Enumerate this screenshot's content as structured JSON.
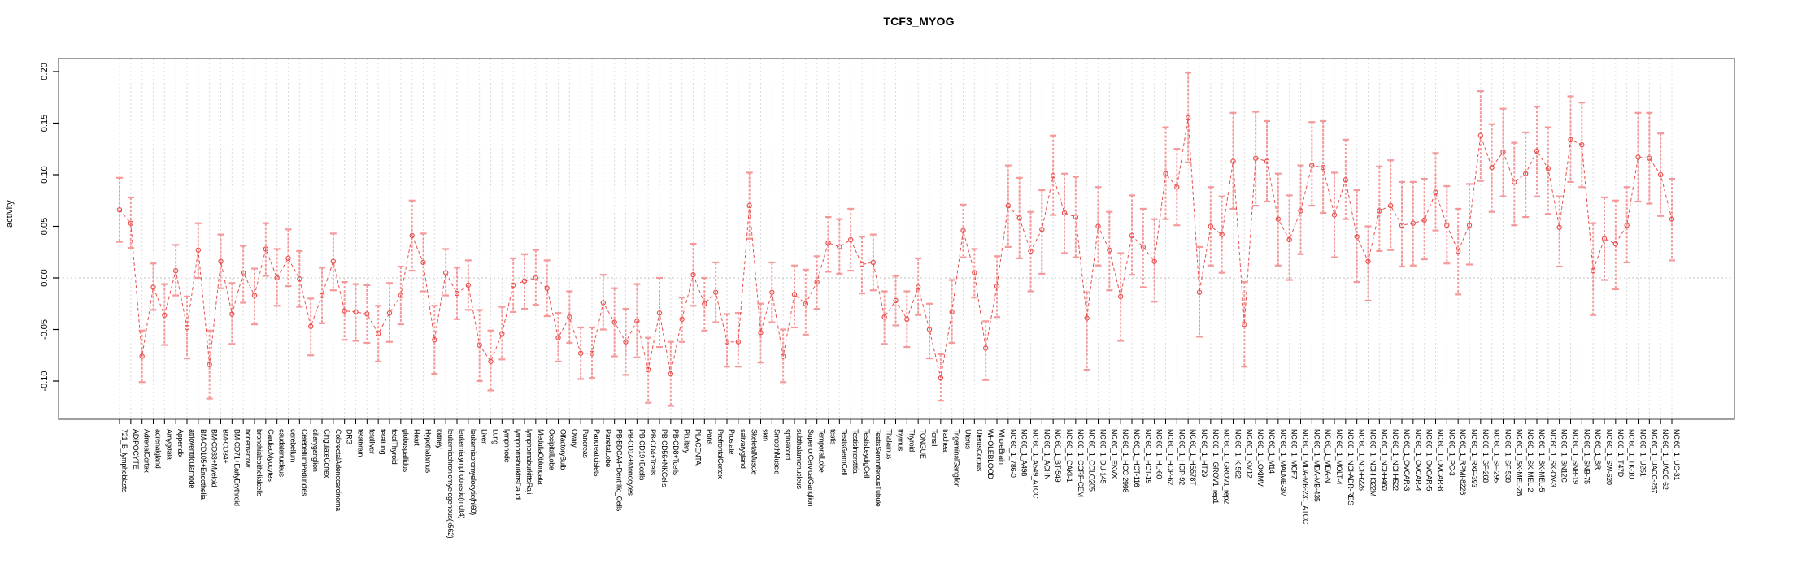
{
  "chart_data": {
    "type": "line",
    "title": "TCF3_MYOG",
    "xlabel": "",
    "ylabel": "activity",
    "ylim": [
      -0.137,
      0.213
    ],
    "yticks": [
      0.2,
      0.15,
      0.1,
      0.05,
      0.0,
      -0.05,
      -0.1
    ],
    "grid": "vertical-dashed-per-category",
    "zero_line": true,
    "legend": "none",
    "marker": "open-circle",
    "error_bars": true,
    "categories": [
      "721_B_lymphoblasts",
      "ADIPOCYTE",
      "AdrenalCortex",
      "adrenalgland",
      "Amygdala",
      "Appendix",
      "atrioventricularnode",
      "BM-CD105+Endothelial",
      "BM-CD33+Myeloid",
      "BM-CD34+",
      "BM-CD71+EarlyErythroid",
      "bonemarrow",
      "bronchialepithelialcells",
      "CardiacMyocytes",
      "caudatenucleus",
      "cerebellum",
      "CerebellumPeduncles",
      "ciliaryganglion",
      "CingulateCortex",
      "ColorectalAdenocarcinoma",
      "DRG",
      "fetalbrain",
      "fetalliver",
      "fetallung",
      "fetalThyroid",
      "globuspallidus",
      "Heart",
      "Hypothalamus",
      "kidney",
      "leukemiachronicmyelogenous(k562)",
      "leukemialymphoblastic(molt4)",
      "leukemiapromyelocytic(hl60)",
      "Liver",
      "Lung",
      "lymphnode",
      "lymphomaburkittsDaudi",
      "lymphomaburkittsRaji",
      "MedullaOblongata",
      "OccipitalLobe",
      "OlfactoryBulb",
      "Ovary",
      "Pancreas",
      "Pancreaticislets",
      "ParietalLobe",
      "PB-BDCA4+Dentritic_Cells",
      "PB-CD14+Monocytes",
      "PB-CD19+Bcells",
      "PB-CD4+Tcells",
      "PB-CD56+NKCells",
      "PB-CD8+Tcells",
      "Pituitary",
      "PLACENTA",
      "Pons",
      "PrefrontalCortex",
      "Prostate",
      "salivarygland",
      "SkeletalMuscle",
      "skin",
      "SmoothMuscle",
      "spinalcord",
      "subthalamicnucleus",
      "SuperiorCervicalGanglion",
      "TemporalLobe",
      "testis",
      "TestisGermCell",
      "TestisInterstitial",
      "TestisLeydigCell",
      "TestisSeminiferousTubule",
      "Thalamus",
      "thymus",
      "Thyroid",
      "TONGUE",
      "Tonsil",
      "trachea",
      "TrigeminalGanglion",
      "Uterus",
      "UterusCorpus",
      "WHOLEBLOOD",
      "WholeBrain",
      "NCI60_1_786-0",
      "NCI60_1_A498",
      "NCI60_1_A549_ATCC",
      "NCI60_1_ACHN",
      "NCI60_1_BT-549",
      "NCI60_1_CAKI-1",
      "NCI60_1_CCRF-CEM",
      "NCI60_1_COLO205",
      "NCI60_1_DU-145",
      "NCI60_1_EKVX",
      "NCI60_1_HCC-2998",
      "NCI60_1_HCT-116",
      "NCI60_1_HCT-15",
      "NCI60_1_HL-60",
      "NCI60_1_HOP-62",
      "NCI60_1_HOP-92",
      "NCI60_1_HS578T",
      "NCI60_1_HT29",
      "NCI60_1_IGROV1_rep1",
      "NCI60_1_IGROV1_rep2",
      "NCI60_1_K-562",
      "NCI60_1_KM12",
      "NCI60_1_LOXIMVI",
      "NCI60_1_M14",
      "NCI60_1_MALME-3M",
      "NCI60_1_MCF7",
      "NCI60_1_MDA-MB-231_ATCC",
      "NCI60_1_MDA-MB-435",
      "NCI60_1_MDA-N",
      "NCI60_1_MOLT-4",
      "NCI60_1_NCI-ADR-RES",
      "NCI60_1_NCI-H226",
      "NCI60_1_NCI-H322M",
      "NCI60_1_NCI-H460",
      "NCI60_1_NCI-H522",
      "NCI60_1_OVCAR-3",
      "NCI60_1_OVCAR-4",
      "NCI60_1_OVCAR-5",
      "NCI60_1_OVCAR-8",
      "NCI60_1_PC-3",
      "NCI60_1_RPMI-8226",
      "NCI60_1_RXF-393",
      "NCI60_1_SF-268",
      "NCI60_1_SF-295",
      "NCI60_1_SF-539",
      "NCI60_1_SK-MEL-28",
      "NCI60_1_SK-MEL-2",
      "NCI60_1_SK-MEL-5",
      "NCI60_1_SK-OV-3",
      "NCI60_1_SN12C",
      "NCI60_1_SNB-19",
      "NCI60_1_SNB-75",
      "NCI60_1_SR",
      "NCI60_1_SW-620",
      "NCI60_1_T47D",
      "NCI60_1_TK-10",
      "NCI60_1_U251",
      "NCI60_1_UACC-257",
      "NCI60_1_UACC-62",
      "NCI60_1_UO-31"
    ],
    "series": [
      {
        "name": "activity",
        "values": [
          0.066,
          0.053,
          -0.076,
          -0.009,
          -0.036,
          0.007,
          -0.048,
          0.027,
          -0.084,
          0.016,
          -0.035,
          0.005,
          -0.017,
          0.028,
          0.0,
          0.019,
          -0.001,
          -0.047,
          -0.017,
          0.016,
          -0.032,
          -0.033,
          -0.035,
          -0.054,
          -0.034,
          -0.017,
          0.041,
          0.015,
          -0.06,
          0.005,
          -0.015,
          -0.007,
          -0.065,
          -0.081,
          -0.054,
          -0.007,
          -0.003,
          0.0,
          -0.01,
          -0.058,
          -0.038,
          -0.073,
          -0.073,
          -0.024,
          -0.043,
          -0.062,
          -0.042,
          -0.089,
          -0.034,
          -0.093,
          -0.04,
          0.003,
          -0.025,
          -0.014,
          -0.062,
          -0.062,
          0.07,
          -0.053,
          -0.014,
          -0.076,
          -0.016,
          -0.025,
          -0.004,
          0.034,
          0.03,
          0.037,
          0.013,
          0.015,
          -0.038,
          -0.022,
          -0.04,
          -0.009,
          -0.05,
          -0.097,
          -0.033,
          0.046,
          0.005,
          -0.068,
          -0.008,
          0.07,
          0.058,
          0.026,
          0.047,
          0.099,
          0.063,
          0.059,
          -0.039,
          0.05,
          0.027,
          -0.018,
          0.041,
          0.03,
          0.016,
          0.101,
          0.088,
          0.155,
          -0.014,
          0.05,
          0.042,
          0.113,
          -0.045,
          0.116,
          0.113,
          0.057,
          0.037,
          0.065,
          0.109,
          0.107,
          0.061,
          0.095,
          0.04,
          0.016,
          0.065,
          0.07,
          0.051,
          0.053,
          0.056,
          0.083,
          0.051,
          0.026,
          0.051,
          0.138,
          0.107,
          0.122,
          0.093,
          0.101,
          0.123,
          0.106,
          0.049,
          0.134,
          0.129,
          0.007,
          0.038,
          0.033,
          0.051,
          0.117,
          0.116,
          0.1,
          0.057
        ],
        "lower": [
          0.035,
          0.029,
          -0.101,
          -0.031,
          -0.065,
          -0.017,
          -0.078,
          0.0,
          -0.117,
          -0.01,
          -0.064,
          -0.024,
          -0.045,
          0.002,
          -0.027,
          -0.008,
          -0.028,
          -0.075,
          -0.044,
          -0.012,
          -0.06,
          -0.061,
          -0.063,
          -0.081,
          -0.062,
          -0.045,
          0.007,
          -0.013,
          -0.093,
          -0.017,
          -0.04,
          -0.031,
          -0.1,
          -0.109,
          -0.079,
          -0.033,
          -0.03,
          -0.026,
          -0.037,
          -0.081,
          -0.063,
          -0.098,
          -0.097,
          -0.05,
          -0.076,
          -0.094,
          -0.077,
          -0.121,
          -0.067,
          -0.124,
          -0.062,
          -0.027,
          -0.051,
          -0.043,
          -0.086,
          -0.086,
          0.038,
          -0.082,
          -0.043,
          -0.101,
          -0.048,
          -0.055,
          -0.03,
          0.006,
          0.004,
          0.007,
          -0.015,
          -0.012,
          -0.064,
          -0.046,
          -0.067,
          -0.036,
          -0.078,
          -0.119,
          -0.063,
          0.02,
          -0.019,
          -0.099,
          -0.038,
          0.03,
          0.019,
          -0.013,
          0.004,
          0.061,
          0.024,
          0.02,
          -0.089,
          0.012,
          -0.012,
          -0.061,
          0.003,
          -0.009,
          -0.023,
          0.057,
          0.051,
          0.112,
          -0.057,
          0.012,
          0.005,
          0.067,
          -0.086,
          0.07,
          0.074,
          0.012,
          -0.002,
          0.023,
          0.07,
          0.063,
          0.02,
          0.057,
          -0.004,
          -0.022,
          0.026,
          0.027,
          0.011,
          0.012,
          0.018,
          0.046,
          0.014,
          -0.016,
          0.013,
          0.094,
          0.064,
          0.079,
          0.051,
          0.059,
          0.079,
          0.062,
          0.011,
          0.093,
          0.088,
          -0.036,
          -0.002,
          -0.011,
          0.015,
          0.074,
          0.072,
          0.06,
          0.017
        ],
        "upper": [
          0.097,
          0.078,
          -0.051,
          0.014,
          -0.006,
          0.032,
          -0.018,
          0.053,
          -0.051,
          0.042,
          -0.005,
          0.031,
          0.009,
          0.053,
          0.028,
          0.047,
          0.026,
          -0.02,
          0.01,
          0.043,
          -0.004,
          -0.006,
          -0.007,
          -0.027,
          -0.005,
          0.011,
          0.075,
          0.043,
          -0.027,
          0.028,
          0.01,
          0.017,
          -0.031,
          -0.051,
          -0.028,
          0.019,
          0.023,
          0.027,
          0.017,
          -0.034,
          -0.013,
          -0.048,
          -0.048,
          0.003,
          -0.01,
          -0.03,
          -0.006,
          -0.058,
          0.0,
          -0.062,
          -0.019,
          0.033,
          0.0,
          0.015,
          -0.035,
          -0.034,
          0.102,
          -0.025,
          0.015,
          -0.05,
          0.012,
          0.008,
          0.021,
          0.059,
          0.057,
          0.067,
          0.04,
          0.042,
          -0.013,
          0.002,
          -0.013,
          0.019,
          -0.025,
          -0.074,
          -0.002,
          0.071,
          0.028,
          -0.042,
          0.021,
          0.109,
          0.097,
          0.064,
          0.085,
          0.138,
          0.101,
          0.098,
          -0.014,
          0.088,
          0.064,
          0.024,
          0.08,
          0.067,
          0.057,
          0.146,
          0.125,
          0.199,
          0.03,
          0.088,
          0.079,
          0.16,
          -0.004,
          0.161,
          0.152,
          0.101,
          0.08,
          0.109,
          0.151,
          0.152,
          0.102,
          0.134,
          0.085,
          0.05,
          0.108,
          0.114,
          0.093,
          0.093,
          0.096,
          0.121,
          0.089,
          0.067,
          0.091,
          0.181,
          0.149,
          0.164,
          0.131,
          0.141,
          0.166,
          0.146,
          0.079,
          0.176,
          0.17,
          0.053,
          0.078,
          0.075,
          0.088,
          0.16,
          0.16,
          0.14,
          0.096
        ]
      }
    ],
    "colors": {
      "point": "#e9504e",
      "line": "#e9504e",
      "errorbar": "#f4999a",
      "grid": "#dcdcdc",
      "zero_line": "#c0c0c0",
      "box": "#7f7f7f",
      "text": "#000000"
    }
  }
}
